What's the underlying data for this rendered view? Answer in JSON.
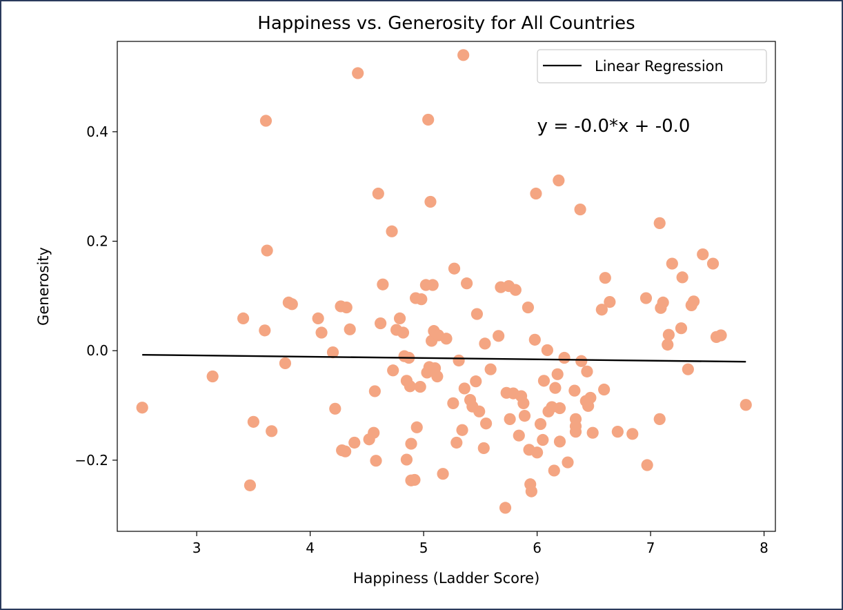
{
  "chart_data": {
    "type": "scatter",
    "title": "Happiness vs. Generosity for All Countries",
    "xlabel": "Happiness (Ladder Score)",
    "ylabel": "Generosity",
    "xlim": [
      2.3,
      8.1
    ],
    "ylim": [
      -0.33,
      0.565
    ],
    "xticks": [
      3,
      4,
      5,
      6,
      7,
      8
    ],
    "xtick_labels": [
      "3",
      "4",
      "5",
      "6",
      "7",
      "8"
    ],
    "yticks": [
      -0.2,
      0.0,
      0.2,
      0.4
    ],
    "ytick_labels": [
      "−0.2",
      "0.0",
      "0.2",
      "0.4"
    ],
    "grid": false,
    "legend": {
      "position": "top-right",
      "entries": [
        "Linear Regression"
      ]
    },
    "annotation": "y = -0.0*x + -0.0",
    "annotation_position": [
      6.0,
      0.4
    ],
    "series": [
      {
        "kind": "scatter",
        "color": "#f4a582",
        "points": [
          [
            2.52,
            -0.104
          ],
          [
            3.14,
            -0.047
          ],
          [
            3.41,
            0.059
          ],
          [
            3.47,
            -0.246
          ],
          [
            3.5,
            -0.13
          ],
          [
            3.6,
            0.037
          ],
          [
            3.61,
            0.42
          ],
          [
            3.62,
            0.183
          ],
          [
            3.66,
            -0.147
          ],
          [
            3.78,
            -0.023
          ],
          [
            3.81,
            0.088
          ],
          [
            3.84,
            0.085
          ],
          [
            4.07,
            0.059
          ],
          [
            4.1,
            0.033
          ],
          [
            4.2,
            -0.003
          ],
          [
            4.22,
            -0.106
          ],
          [
            4.27,
            0.081
          ],
          [
            4.28,
            -0.182
          ],
          [
            4.31,
            -0.184
          ],
          [
            4.32,
            0.079
          ],
          [
            4.35,
            0.039
          ],
          [
            4.39,
            -0.168
          ],
          [
            4.42,
            0.507
          ],
          [
            4.52,
            -0.162
          ],
          [
            4.56,
            -0.15
          ],
          [
            4.57,
            -0.074
          ],
          [
            4.58,
            -0.201
          ],
          [
            4.6,
            0.287
          ],
          [
            4.62,
            0.05
          ],
          [
            4.64,
            0.121
          ],
          [
            4.72,
            0.218
          ],
          [
            4.73,
            -0.036
          ],
          [
            4.76,
            0.038
          ],
          [
            4.79,
            0.059
          ],
          [
            4.82,
            0.033
          ],
          [
            4.83,
            -0.01
          ],
          [
            4.85,
            -0.055
          ],
          [
            4.85,
            -0.199
          ],
          [
            4.87,
            -0.013
          ],
          [
            4.88,
            -0.065
          ],
          [
            4.89,
            -0.237
          ],
          [
            4.89,
            -0.17
          ],
          [
            4.92,
            -0.236
          ],
          [
            4.93,
            0.096
          ],
          [
            4.94,
            -0.14
          ],
          [
            4.97,
            -0.066
          ],
          [
            4.98,
            0.094
          ],
          [
            5.02,
            0.12
          ],
          [
            5.03,
            -0.04
          ],
          [
            5.04,
            0.422
          ],
          [
            5.05,
            -0.03
          ],
          [
            5.06,
            0.272
          ],
          [
            5.07,
            0.018
          ],
          [
            5.08,
            0.12
          ],
          [
            5.09,
            0.036
          ],
          [
            5.1,
            -0.032
          ],
          [
            5.12,
            -0.047
          ],
          [
            5.13,
            0.028
          ],
          [
            5.17,
            -0.225
          ],
          [
            5.2,
            0.022
          ],
          [
            5.26,
            -0.096
          ],
          [
            5.27,
            0.15
          ],
          [
            5.29,
            -0.168
          ],
          [
            5.31,
            -0.018
          ],
          [
            5.34,
            -0.145
          ],
          [
            5.35,
            0.54
          ],
          [
            5.36,
            -0.069
          ],
          [
            5.38,
            0.123
          ],
          [
            5.41,
            -0.09
          ],
          [
            5.43,
            -0.102
          ],
          [
            5.46,
            -0.056
          ],
          [
            5.47,
            0.067
          ],
          [
            5.49,
            -0.111
          ],
          [
            5.53,
            -0.178
          ],
          [
            5.54,
            0.013
          ],
          [
            5.55,
            -0.133
          ],
          [
            5.59,
            -0.034
          ],
          [
            5.66,
            0.027
          ],
          [
            5.68,
            0.116
          ],
          [
            5.72,
            -0.287
          ],
          [
            5.73,
            -0.077
          ],
          [
            5.75,
            0.118
          ],
          [
            5.76,
            -0.125
          ],
          [
            5.79,
            -0.078
          ],
          [
            5.81,
            0.111
          ],
          [
            5.84,
            -0.155
          ],
          [
            5.86,
            -0.083
          ],
          [
            5.88,
            -0.096
          ],
          [
            5.89,
            -0.119
          ],
          [
            5.92,
            0.079
          ],
          [
            5.93,
            -0.181
          ],
          [
            5.94,
            -0.244
          ],
          [
            5.95,
            -0.257
          ],
          [
            5.98,
            0.02
          ],
          [
            5.99,
            0.287
          ],
          [
            6.0,
            -0.186
          ],
          [
            6.03,
            -0.134
          ],
          [
            6.05,
            -0.163
          ],
          [
            6.06,
            -0.055
          ],
          [
            6.09,
            0.001
          ],
          [
            6.1,
            -0.111
          ],
          [
            6.13,
            -0.103
          ],
          [
            6.15,
            -0.219
          ],
          [
            6.16,
            -0.068
          ],
          [
            6.18,
            -0.043
          ],
          [
            6.19,
            0.311
          ],
          [
            6.2,
            -0.105
          ],
          [
            6.2,
            -0.166
          ],
          [
            6.24,
            -0.013
          ],
          [
            6.27,
            -0.204
          ],
          [
            6.33,
            -0.073
          ],
          [
            6.34,
            -0.125
          ],
          [
            6.34,
            -0.138
          ],
          [
            6.34,
            -0.148
          ],
          [
            6.38,
            0.258
          ],
          [
            6.39,
            -0.019
          ],
          [
            6.43,
            -0.092
          ],
          [
            6.44,
            -0.038
          ],
          [
            6.45,
            -0.101
          ],
          [
            6.47,
            -0.086
          ],
          [
            6.49,
            -0.15
          ],
          [
            6.57,
            0.075
          ],
          [
            6.59,
            -0.071
          ],
          [
            6.6,
            0.133
          ],
          [
            6.64,
            0.089
          ],
          [
            6.71,
            -0.148
          ],
          [
            6.84,
            -0.152
          ],
          [
            6.96,
            0.096
          ],
          [
            6.97,
            -0.209
          ],
          [
            7.08,
            0.233
          ],
          [
            7.08,
            -0.125
          ],
          [
            7.09,
            0.078
          ],
          [
            7.11,
            0.088
          ],
          [
            7.15,
            0.011
          ],
          [
            7.16,
            0.029
          ],
          [
            7.19,
            0.159
          ],
          [
            7.27,
            0.041
          ],
          [
            7.28,
            0.134
          ],
          [
            7.33,
            -0.034
          ],
          [
            7.36,
            0.083
          ],
          [
            7.38,
            0.09
          ],
          [
            7.46,
            0.176
          ],
          [
            7.55,
            0.159
          ],
          [
            7.58,
            0.025
          ],
          [
            7.62,
            0.028
          ],
          [
            7.84,
            -0.099
          ]
        ]
      },
      {
        "kind": "line",
        "name": "Linear Regression",
        "color": "#000000",
        "x": [
          2.52,
          7.84
        ],
        "y": [
          -0.0075,
          -0.0202
        ]
      }
    ]
  }
}
